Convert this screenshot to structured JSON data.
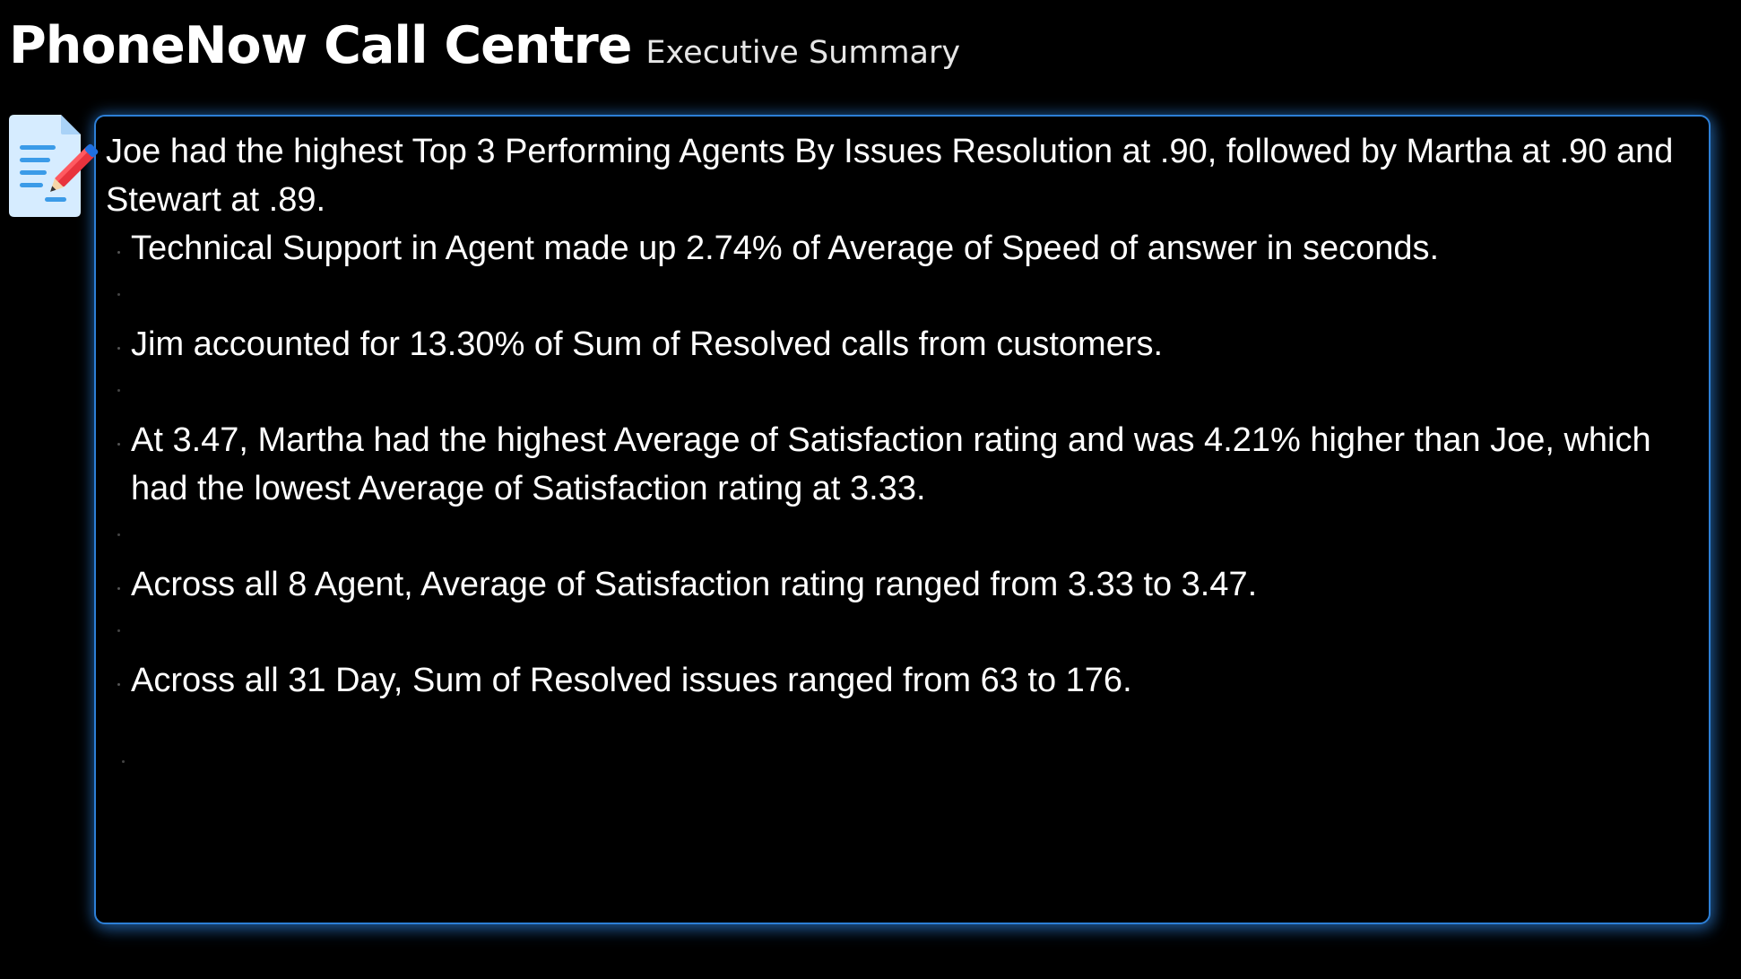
{
  "header": {
    "title": "PhoneNow Call Centre",
    "subtitle": "Executive Summary"
  },
  "icon": "document-edit-icon",
  "colors": {
    "background": "#000000",
    "card_border": "#2d7fd6",
    "text": "#ffffff"
  },
  "summary": {
    "lead": "Joe had the highest Top 3 Performing Agents By Issues Resolution at .90, followed by Martha at .90 and Stewart at .89.",
    "bullets": [
      "Technical Support in Agent  made up 2.74% of Average of Speed of answer in seconds.",
      "Jim accounted for 13.30% of Sum of Resolved calls from customers.",
      "At 3.47, Martha had the highest Average of Satisfaction rating and was 4.21% higher than Joe, which had the lowest Average of Satisfaction rating at 3.33.",
      "Across all 8 Agent, Average of Satisfaction rating ranged from 3.33 to 3.47.",
      "Across all 31 Day, Sum of Resolved issues ranged from 63 to 176."
    ]
  }
}
